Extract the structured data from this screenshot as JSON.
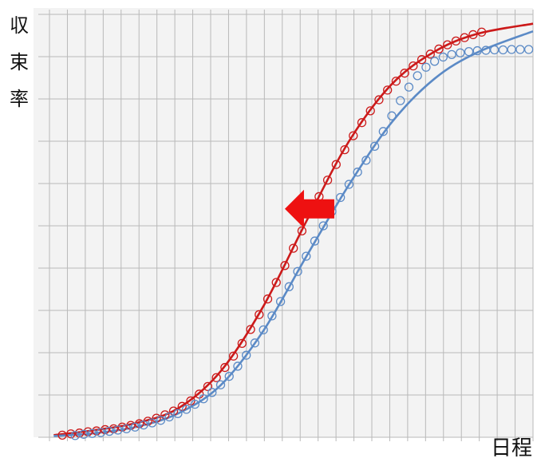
{
  "chart_data": {
    "type": "scatter",
    "title": "",
    "xlabel": "日程",
    "ylabel": "収束率",
    "xlim": [
      0,
      113
    ],
    "ylim": [
      0,
      100
    ],
    "grid": true,
    "legend": "none",
    "colors": {
      "red": "#cc1a1a",
      "blue": "#5b8ac6",
      "arrow": "#ee1111"
    },
    "annotations": [
      {
        "type": "arrow",
        "direction": "left",
        "color": "#ee1111",
        "x": 55,
        "y": 54
      }
    ],
    "series": [
      {
        "color": "#cc1a1a",
        "marker": "circle",
        "points": [
          [
            3,
            0.5
          ],
          [
            5,
            0.8
          ],
          [
            7,
            1.0
          ],
          [
            9,
            1.3
          ],
          [
            11,
            1.5
          ],
          [
            13,
            1.8
          ],
          [
            15,
            2.0
          ],
          [
            17,
            2.4
          ],
          [
            19,
            2.8
          ],
          [
            21,
            3.2
          ],
          [
            23,
            3.8
          ],
          [
            25,
            4.5
          ],
          [
            27,
            5.3
          ],
          [
            29,
            6.2
          ],
          [
            31,
            7.3
          ],
          [
            33,
            8.6
          ],
          [
            35,
            10.2
          ],
          [
            37,
            12.0
          ],
          [
            39,
            14.1
          ],
          [
            41,
            16.5
          ],
          [
            43,
            19.2
          ],
          [
            45,
            22.2
          ],
          [
            47,
            25.5
          ],
          [
            49,
            29.0
          ],
          [
            51,
            32.7
          ],
          [
            53,
            36.6
          ],
          [
            55,
            40.6
          ],
          [
            57,
            44.7
          ],
          [
            59,
            48.8
          ],
          [
            61,
            52.9
          ],
          [
            63,
            56.9
          ],
          [
            65,
            60.8
          ],
          [
            67,
            64.5
          ],
          [
            69,
            68.0
          ],
          [
            71,
            71.3
          ],
          [
            73,
            74.4
          ],
          [
            75,
            77.2
          ],
          [
            77,
            79.8
          ],
          [
            79,
            82.1
          ],
          [
            81,
            84.2
          ],
          [
            83,
            86.1
          ],
          [
            85,
            87.8
          ],
          [
            87,
            89.3
          ],
          [
            89,
            90.6
          ],
          [
            91,
            91.8
          ],
          [
            93,
            92.8
          ],
          [
            95,
            93.7
          ],
          [
            97,
            94.5
          ],
          [
            99,
            95.2
          ],
          [
            101,
            95.8
          ]
        ],
        "fit": [
          [
            1,
            0.5
          ],
          [
            10,
            1.6
          ],
          [
            20,
            3.3
          ],
          [
            30,
            6.8
          ],
          [
            40,
            15.6
          ],
          [
            50,
            31.0
          ],
          [
            60,
            51.0
          ],
          [
            70,
            70.0
          ],
          [
            80,
            83.5
          ],
          [
            90,
            91.2
          ],
          [
            100,
            95.4
          ],
          [
            113,
            97.8
          ]
        ]
      },
      {
        "color": "#5b8ac6",
        "marker": "circle",
        "points": [
          [
            6,
            0.4
          ],
          [
            8,
            0.7
          ],
          [
            10,
            0.9
          ],
          [
            12,
            1.1
          ],
          [
            14,
            1.4
          ],
          [
            16,
            1.7
          ],
          [
            18,
            2.0
          ],
          [
            20,
            2.4
          ],
          [
            22,
            2.9
          ],
          [
            24,
            3.4
          ],
          [
            26,
            4.0
          ],
          [
            28,
            4.8
          ],
          [
            30,
            5.6
          ],
          [
            32,
            6.6
          ],
          [
            34,
            7.8
          ],
          [
            36,
            9.1
          ],
          [
            38,
            10.6
          ],
          [
            40,
            12.4
          ],
          [
            42,
            14.4
          ],
          [
            44,
            16.8
          ],
          [
            46,
            19.4
          ],
          [
            48,
            22.3
          ],
          [
            50,
            25.4
          ],
          [
            52,
            28.7
          ],
          [
            54,
            32.1
          ],
          [
            56,
            35.6
          ],
          [
            58,
            39.2
          ],
          [
            60,
            42.8
          ],
          [
            62,
            46.4
          ],
          [
            64,
            50.0
          ],
          [
            66,
            53.4
          ],
          [
            68,
            56.7
          ],
          [
            70,
            59.8
          ],
          [
            72,
            62.7
          ],
          [
            74,
            65.5
          ],
          [
            76,
            68.8
          ],
          [
            78,
            72.3
          ],
          [
            80,
            76.0
          ],
          [
            82,
            79.6
          ],
          [
            84,
            82.8
          ],
          [
            86,
            85.5
          ],
          [
            88,
            87.5
          ],
          [
            90,
            88.9
          ],
          [
            92,
            89.9
          ],
          [
            94,
            90.5
          ],
          [
            96,
            90.9
          ],
          [
            98,
            91.2
          ],
          [
            100,
            91.4
          ],
          [
            102,
            91.5
          ],
          [
            104,
            91.6
          ],
          [
            106,
            91.6
          ],
          [
            108,
            91.7
          ],
          [
            110,
            91.7
          ],
          [
            112,
            91.7
          ]
        ],
        "fit": [
          [
            1,
            0.3
          ],
          [
            10,
            0.9
          ],
          [
            20,
            2.4
          ],
          [
            30,
            5.6
          ],
          [
            40,
            12.3
          ],
          [
            50,
            25.2
          ],
          [
            60,
            42.7
          ],
          [
            70,
            59.7
          ],
          [
            80,
            74.5
          ],
          [
            90,
            84.8
          ],
          [
            100,
            91.0
          ],
          [
            113,
            96.0
          ]
        ]
      }
    ]
  }
}
